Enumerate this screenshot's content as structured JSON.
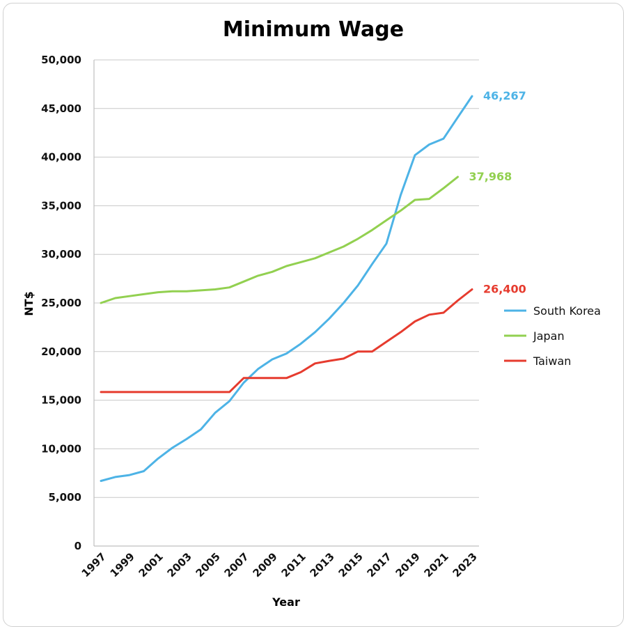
{
  "chart_data": {
    "type": "line",
    "title": "Minimum Wage",
    "xlabel": "Year",
    "ylabel": "NT$",
    "ylim": [
      0,
      50000
    ],
    "y_ticks": [
      0,
      5000,
      10000,
      15000,
      20000,
      25000,
      30000,
      35000,
      40000,
      45000,
      50000
    ],
    "y_tick_labels": [
      "0",
      "5,000",
      "10,000",
      "15,000",
      "20,000",
      "25,000",
      "30,000",
      "35,000",
      "40,000",
      "45,000",
      "50,000"
    ],
    "x": [
      1997,
      1998,
      1999,
      2000,
      2001,
      2002,
      2003,
      2004,
      2005,
      2006,
      2007,
      2008,
      2009,
      2010,
      2011,
      2012,
      2013,
      2014,
      2015,
      2016,
      2017,
      2018,
      2019,
      2020,
      2021,
      2022,
      2023
    ],
    "x_tick_labels": [
      "1997",
      "1999",
      "2001",
      "2003",
      "2005",
      "2007",
      "2009",
      "2011",
      "2013",
      "2015",
      "2017",
      "2019",
      "2021",
      "2023"
    ],
    "grid": true,
    "legend_position": "right",
    "series": [
      {
        "name": "South Korea",
        "color": "#4db3e6",
        "end_label": "46,267",
        "values": [
          6700,
          7100,
          7300,
          7700,
          9000,
          10100,
          11000,
          12000,
          13700,
          14900,
          16800,
          18200,
          19200,
          19800,
          20800,
          22000,
          23400,
          25000,
          26800,
          29000,
          31100,
          36100,
          40200,
          41300,
          41900,
          44100,
          46267
        ]
      },
      {
        "name": "Japan",
        "color": "#92d050",
        "end_label": "37,968",
        "values": [
          25000,
          25500,
          25700,
          25900,
          26100,
          26200,
          26200,
          26300,
          26400,
          26600,
          27200,
          27800,
          28200,
          28800,
          29200,
          29600,
          30200,
          30800,
          31600,
          32500,
          33500,
          34500,
          35600,
          35700,
          36800,
          37968,
          null
        ]
      },
      {
        "name": "Taiwan",
        "color": "#e63b2e",
        "end_label": "26,400",
        "values": [
          15840,
          15840,
          15840,
          15840,
          15840,
          15840,
          15840,
          15840,
          15840,
          15840,
          17280,
          17280,
          17280,
          17280,
          17880,
          18780,
          19047,
          19273,
          20008,
          20008,
          21009,
          22000,
          23100,
          23800,
          24000,
          25250,
          26400
        ]
      }
    ]
  }
}
